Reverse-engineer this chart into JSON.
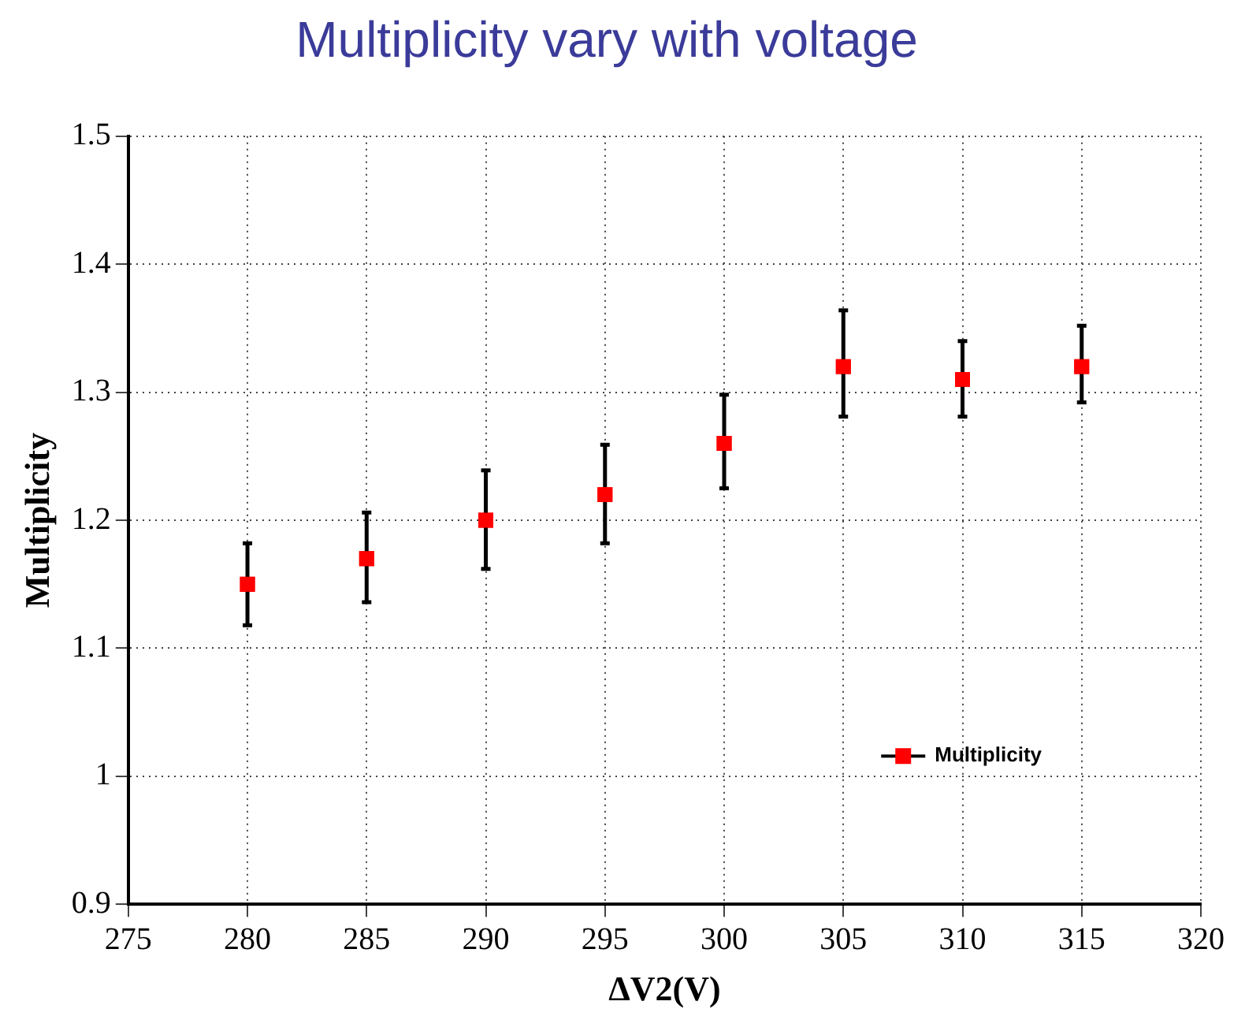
{
  "chart_data": {
    "type": "scatter",
    "title": "Multiplicity vary with voltage",
    "xlabel": "ΔV2(V)",
    "ylabel": "Multiplicity",
    "x": [
      280,
      285,
      290,
      295,
      300,
      305,
      310,
      315
    ],
    "series": [
      {
        "name": "Multiplicity",
        "color": "#ff0000",
        "values": [
          1.15,
          1.17,
          1.2,
          1.22,
          1.26,
          1.32,
          1.31,
          1.32
        ],
        "errors": [
          [
            1.118,
            1.182
          ],
          [
            1.136,
            1.206
          ],
          [
            1.162,
            1.239
          ],
          [
            1.182,
            1.259
          ],
          [
            1.225,
            1.298
          ],
          [
            1.281,
            1.364
          ],
          [
            1.281,
            1.34
          ],
          [
            1.292,
            1.352
          ]
        ]
      }
    ],
    "xlim": [
      275,
      320
    ],
    "xticks": [
      275,
      280,
      285,
      290,
      295,
      300,
      305,
      310,
      315,
      320
    ],
    "ylim": [
      0.9,
      1.5
    ],
    "yticks": [
      0.9,
      1,
      1.1,
      1.2,
      1.3,
      1.4,
      1.5
    ],
    "grid": true,
    "legend": "bottom right",
    "marker": "square"
  }
}
